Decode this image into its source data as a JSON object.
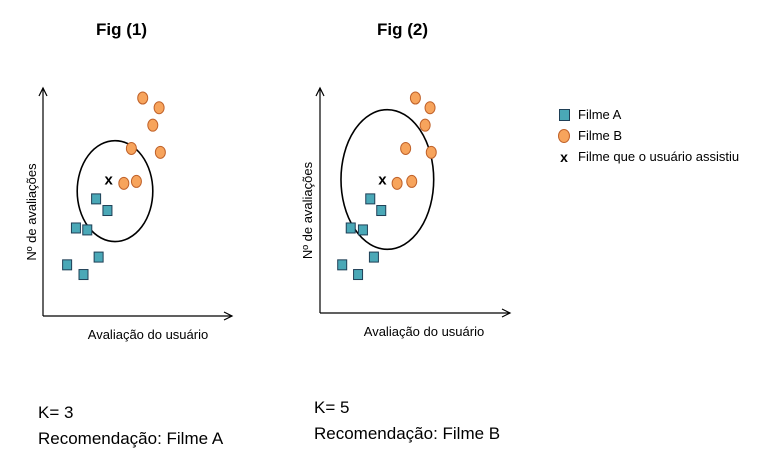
{
  "legend": {
    "items": [
      {
        "marker": "square",
        "label": "Filme A",
        "color": "#4aa8b7"
      },
      {
        "marker": "circle",
        "label": "Filme B",
        "color": "#f7a45c"
      },
      {
        "marker": "x",
        "symbol": "x",
        "label": "Filme que o usuário assistiu"
      }
    ]
  },
  "chart_data": [
    {
      "type": "scatter",
      "title": "Fig (1)",
      "xlabel": "Avaliação do usuário",
      "ylabel": "Nº de avaliações",
      "xlim": [
        0,
        10
      ],
      "ylim": [
        0,
        10
      ],
      "grid": false,
      "series": [
        {
          "name": "Filme A",
          "marker": "square",
          "color": "#4aa8b7",
          "points": [
            [
              1.9,
              3.3
            ],
            [
              2.8,
              3.2
            ],
            [
              1.2,
              1.4
            ],
            [
              2.5,
              0.9
            ],
            [
              3.7,
              1.8
            ],
            [
              3.5,
              4.8
            ],
            [
              4.4,
              4.2
            ]
          ]
        },
        {
          "name": "Filme B",
          "marker": "circle",
          "color": "#f7a45c",
          "points": [
            [
              7.2,
              10.0
            ],
            [
              8.5,
              9.5
            ],
            [
              8.0,
              8.6
            ],
            [
              6.3,
              7.4
            ],
            [
              8.6,
              7.2
            ],
            [
              6.7,
              5.7
            ],
            [
              5.7,
              5.6
            ]
          ]
        }
      ],
      "query_point": {
        "x": 4.5,
        "y": 5.8,
        "symbol": "x"
      },
      "neighborhood": {
        "cx": 5.0,
        "cy": 5.2,
        "rx": 3.0,
        "ry": 2.6
      },
      "k_text": "K= 3",
      "recommendation_text": "Recomendação: Filme A"
    },
    {
      "type": "scatter",
      "title": "Fig (2)",
      "xlabel": "Avaliação do usuário",
      "ylabel": "Nº de avaliações",
      "xlim": [
        0,
        10
      ],
      "ylim": [
        0,
        10
      ],
      "grid": false,
      "series": [
        {
          "name": "Filme A",
          "marker": "square",
          "color": "#4aa8b7",
          "points": [
            [
              1.7,
              3.3
            ],
            [
              2.7,
              3.2
            ],
            [
              1.0,
              1.4
            ],
            [
              2.3,
              0.9
            ],
            [
              3.6,
              1.8
            ],
            [
              3.3,
              4.8
            ],
            [
              4.2,
              4.2
            ]
          ]
        },
        {
          "name": "Filme B",
          "marker": "circle",
          "color": "#f7a45c",
          "points": [
            [
              7.0,
              10.0
            ],
            [
              8.2,
              9.5
            ],
            [
              7.8,
              8.6
            ],
            [
              6.2,
              7.4
            ],
            [
              8.3,
              7.2
            ],
            [
              6.7,
              5.7
            ],
            [
              5.5,
              5.6
            ]
          ]
        }
      ],
      "query_point": {
        "x": 4.3,
        "y": 5.8,
        "symbol": "x"
      },
      "neighborhood": {
        "cx": 4.7,
        "cy": 5.8,
        "rx": 3.8,
        "ry": 3.6
      },
      "k_text": "K= 5",
      "recommendation_text": "Recomendação: Filme B"
    }
  ]
}
